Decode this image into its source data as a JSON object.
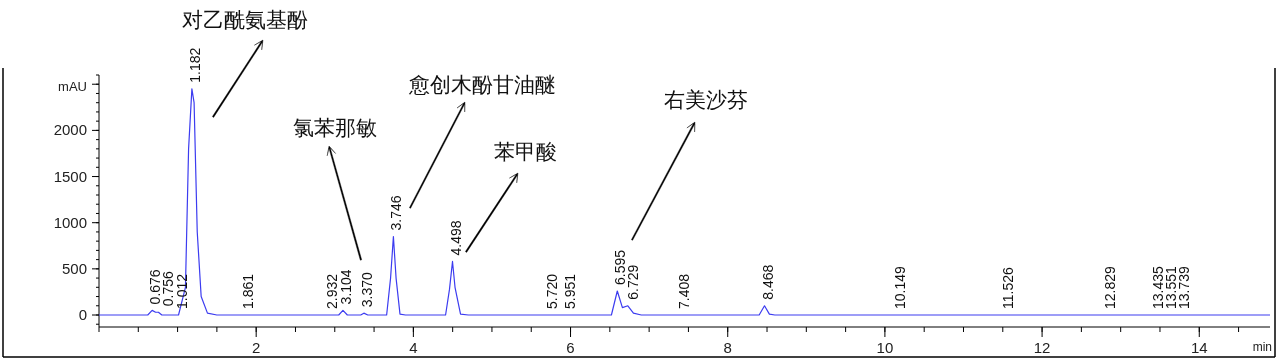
{
  "chart_data": {
    "type": "line",
    "xlabel": "min",
    "ylabel": "mAU",
    "xlim": [
      0,
      14.9
    ],
    "ylim": [
      -130,
      2600
    ],
    "xticks": [
      2,
      4,
      6,
      8,
      10,
      12,
      14
    ],
    "yticks": [
      0,
      500,
      1000,
      1500,
      2000,
      {
        "value": 2500,
        "label": null
      }
    ],
    "series": [
      {
        "color": "#3c3cf0",
        "x": [
          0,
          0.62,
          0.676,
          0.72,
          0.756,
          0.8,
          1.012,
          1.1,
          1.14,
          1.182,
          1.21,
          1.25,
          1.3,
          1.38,
          1.5,
          3.05,
          3.104,
          3.16,
          3.33,
          3.37,
          3.42,
          3.66,
          3.71,
          3.746,
          3.78,
          3.83,
          3.9,
          4.41,
          4.46,
          4.498,
          4.53,
          4.6,
          4.7,
          6.52,
          6.595,
          6.66,
          6.729,
          6.8,
          6.9,
          8.4,
          8.468,
          8.53,
          8.6,
          14.9
        ],
        "values": [
          0,
          0,
          50,
          30,
          30,
          0,
          0,
          300,
          1800,
          2450,
          2300,
          900,
          200,
          20,
          0,
          0,
          50,
          0,
          0,
          20,
          0,
          0,
          400,
          850,
          400,
          10,
          0,
          0,
          280,
          580,
          300,
          10,
          0,
          0,
          260,
          80,
          100,
          20,
          0,
          0,
          100,
          10,
          0,
          0
        ]
      }
    ],
    "annotations": [
      "对乙酰氨基酚",
      "氯苯那敏",
      "愈创木酚甘油醚",
      "苯甲酸",
      "右美沙芬",
      {
        "text": "0.676",
        "x": 0.676,
        "y": 50
      },
      {
        "text": "0.756",
        "x": 0.756,
        "y": 30
      },
      {
        "text": "1.012",
        "x": 1.012,
        "y": 0
      },
      {
        "text": "1.182",
        "x": 1.182,
        "y": 2450
      },
      {
        "text": "1.861",
        "x": 1.861,
        "y": 0
      },
      {
        "text": "2.932",
        "x": 2.932,
        "y": 0
      },
      {
        "text": "3.104",
        "x": 3.104,
        "y": 50
      },
      {
        "text": "3.370",
        "x": 3.37,
        "y": 20
      },
      {
        "text": "3.746",
        "x": 3.746,
        "y": 850
      },
      {
        "text": "4.498",
        "x": 4.498,
        "y": 580
      },
      {
        "text": "5.720",
        "x": 5.72,
        "y": 0
      },
      {
        "text": "5.951",
        "x": 5.951,
        "y": 0
      },
      {
        "text": "6.595",
        "x": 6.595,
        "y": 260
      },
      {
        "text": "6.729",
        "x": 6.729,
        "y": 100
      },
      {
        "text": "7.408",
        "x": 7.408,
        "y": 0
      },
      {
        "text": "8.468",
        "x": 8.468,
        "y": 100
      },
      {
        "text": "10.149",
        "x": 10.149,
        "y": 0
      },
      {
        "text": "11.526",
        "x": 11.526,
        "y": 0
      },
      {
        "text": "12.829",
        "x": 12.829,
        "y": 0
      },
      {
        "text": "13.435",
        "x": 13.435,
        "y": 0
      },
      {
        "text": "13.551",
        "x": 13.551,
        "y": 0
      },
      {
        "text": "13.739",
        "x": 13.739,
        "y": 0
      }
    ]
  }
}
